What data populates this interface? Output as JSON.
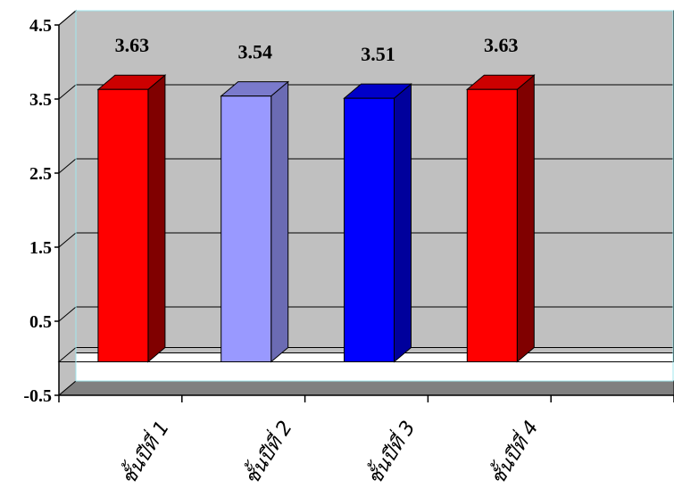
{
  "chart_data": {
    "type": "bar",
    "title": "",
    "xlabel": "",
    "ylabel": "",
    "categories": [
      "ชั้นปีที่ 1",
      "ชั้นปีที่ 2",
      "ชั้นปีที่ 3",
      "ชั้นปีที่ 4"
    ],
    "values": [
      3.63,
      3.54,
      3.51,
      3.63
    ],
    "data_labels": [
      "3.63",
      "3.54",
      "3.51",
      "3.63"
    ],
    "bar_colors": [
      "#ff0000",
      "#9999ff",
      "#0000ff",
      "#ff0000"
    ],
    "bar_side_colors": [
      "#800000",
      "#6b6bb3",
      "#00009c",
      "#800000"
    ],
    "bar_top_colors": [
      "#cc0000",
      "#7a7acc",
      "#0000c8",
      "#cc0000"
    ],
    "ylim": [
      -0.5,
      4.5
    ],
    "yticks": [
      -0.5,
      0.5,
      1.5,
      2.5,
      3.5,
      4.5
    ],
    "ytick_labels": [
      "-0.5",
      "0.5",
      "1.5",
      "2.5",
      "3.5",
      "4.5"
    ],
    "grid": true,
    "legend": "none",
    "plot_background": "#c0c0c0",
    "floor_color": "#808080"
  }
}
